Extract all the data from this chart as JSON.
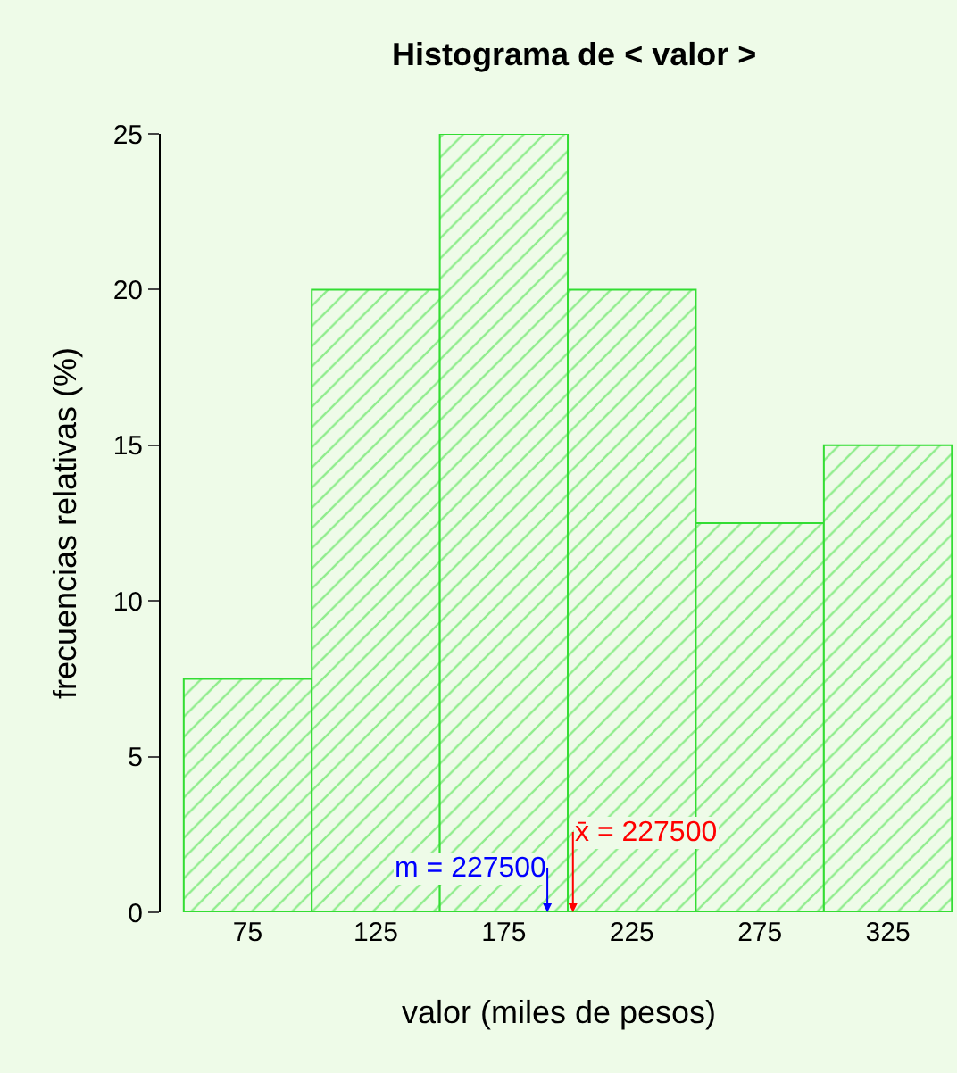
{
  "chart_data": {
    "type": "histogram",
    "title": "Histograma de < valor >",
    "xlabel": "valor (miles de pesos)",
    "ylabel": "frecuencias relativas (%)",
    "bins": [
      50,
      100,
      150,
      200,
      250,
      300,
      350
    ],
    "values": [
      7.5,
      20,
      25,
      20,
      12.5,
      15
    ],
    "color": "#33dd33",
    "xlim": [
      41,
      352
    ],
    "xticks": [
      75,
      125,
      175,
      225,
      275,
      325
    ],
    "ylim": [
      0,
      25
    ],
    "yticks": [
      0,
      5,
      10,
      15,
      20,
      25
    ],
    "grid": false,
    "annotations": [
      {
        "text": "m = 227500",
        "x": 192,
        "y": 0
      },
      {
        "text": "x̄ = 227500",
        "x": 202,
        "y": 0
      }
    ]
  }
}
